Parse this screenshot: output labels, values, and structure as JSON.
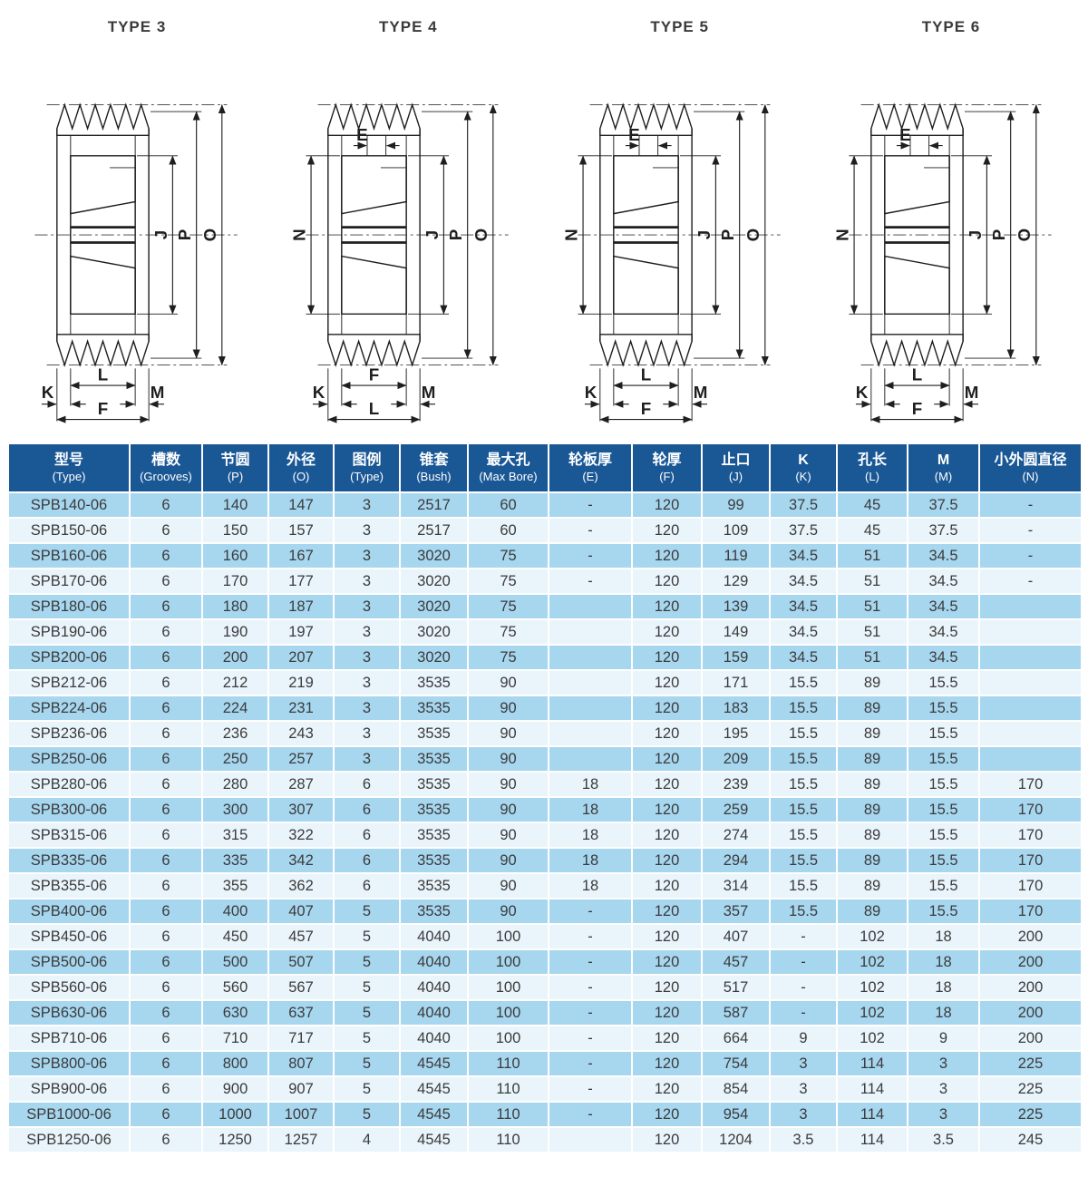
{
  "colors": {
    "header_bg": "#1a5795",
    "row_light": "#a7d6ef",
    "row_pale": "#e9f4fb",
    "header_text": "#ffffff",
    "cell_text": "#3b3b3b",
    "line": "#1f1f1f"
  },
  "drawings": [
    {
      "title": "TYPE 3",
      "right_dims": [
        "J",
        "P",
        "O"
      ],
      "left_dim": "",
      "web_dim": "",
      "k_label": "K",
      "inner_label": "L",
      "m_label": "M",
      "outer_label": "F"
    },
    {
      "title": "TYPE 4",
      "right_dims": [
        "J",
        "P",
        "O"
      ],
      "left_dim": "N",
      "web_dim": "E",
      "k_label": "K",
      "inner_label": "F",
      "m_label": "M",
      "outer_label": "L"
    },
    {
      "title": "TYPE 5",
      "right_dims": [
        "J",
        "P",
        "O"
      ],
      "left_dim": "N",
      "web_dim": "E",
      "k_label": "K",
      "inner_label": "L",
      "m_label": "M",
      "outer_label": "F"
    },
    {
      "title": "TYPE 6",
      "right_dims": [
        "J",
        "P",
        "O"
      ],
      "left_dim": "N",
      "web_dim": "E",
      "k_label": "K",
      "inner_label": "L",
      "m_label": "M",
      "outer_label": "F"
    }
  ],
  "table": {
    "columns": [
      {
        "zh": "型号",
        "en": "(Type)"
      },
      {
        "zh": "槽数",
        "en": "(Grooves)"
      },
      {
        "zh": "节圆",
        "en": "(P)"
      },
      {
        "zh": "外径",
        "en": "(O)"
      },
      {
        "zh": "图例",
        "en": "(Type)"
      },
      {
        "zh": "锥套",
        "en": "(Bush)"
      },
      {
        "zh": "最大孔",
        "en": "(Max Bore)"
      },
      {
        "zh": "轮板厚",
        "en": "(E)"
      },
      {
        "zh": "轮厚",
        "en": "(F)"
      },
      {
        "zh": "止口",
        "en": "(J)"
      },
      {
        "zh": "K",
        "en": "(K)"
      },
      {
        "zh": "孔长",
        "en": "(L)"
      },
      {
        "zh": "M",
        "en": "(M)"
      },
      {
        "zh": "小外圆直径",
        "en": "(N)"
      }
    ],
    "rows": [
      [
        "SPB140-06",
        "6",
        "140",
        "147",
        "3",
        "2517",
        "60",
        "-",
        "120",
        "99",
        "37.5",
        "45",
        "37.5",
        "-"
      ],
      [
        "SPB150-06",
        "6",
        "150",
        "157",
        "3",
        "2517",
        "60",
        "-",
        "120",
        "109",
        "37.5",
        "45",
        "37.5",
        "-"
      ],
      [
        "SPB160-06",
        "6",
        "160",
        "167",
        "3",
        "3020",
        "75",
        "-",
        "120",
        "119",
        "34.5",
        "51",
        "34.5",
        "-"
      ],
      [
        "SPB170-06",
        "6",
        "170",
        "177",
        "3",
        "3020",
        "75",
        "-",
        "120",
        "129",
        "34.5",
        "51",
        "34.5",
        "-"
      ],
      [
        "SPB180-06",
        "6",
        "180",
        "187",
        "3",
        "3020",
        "75",
        "",
        "120",
        "139",
        "34.5",
        "51",
        "34.5",
        ""
      ],
      [
        "SPB190-06",
        "6",
        "190",
        "197",
        "3",
        "3020",
        "75",
        "",
        "120",
        "149",
        "34.5",
        "51",
        "34.5",
        ""
      ],
      [
        "SPB200-06",
        "6",
        "200",
        "207",
        "3",
        "3020",
        "75",
        "",
        "120",
        "159",
        "34.5",
        "51",
        "34.5",
        ""
      ],
      [
        "SPB212-06",
        "6",
        "212",
        "219",
        "3",
        "3535",
        "90",
        "",
        "120",
        "171",
        "15.5",
        "89",
        "15.5",
        ""
      ],
      [
        "SPB224-06",
        "6",
        "224",
        "231",
        "3",
        "3535",
        "90",
        "",
        "120",
        "183",
        "15.5",
        "89",
        "15.5",
        ""
      ],
      [
        "SPB236-06",
        "6",
        "236",
        "243",
        "3",
        "3535",
        "90",
        "",
        "120",
        "195",
        "15.5",
        "89",
        "15.5",
        ""
      ],
      [
        "SPB250-06",
        "6",
        "250",
        "257",
        "3",
        "3535",
        "90",
        "",
        "120",
        "209",
        "15.5",
        "89",
        "15.5",
        ""
      ],
      [
        "SPB280-06",
        "6",
        "280",
        "287",
        "6",
        "3535",
        "90",
        "18",
        "120",
        "239",
        "15.5",
        "89",
        "15.5",
        "170"
      ],
      [
        "SPB300-06",
        "6",
        "300",
        "307",
        "6",
        "3535",
        "90",
        "18",
        "120",
        "259",
        "15.5",
        "89",
        "15.5",
        "170"
      ],
      [
        "SPB315-06",
        "6",
        "315",
        "322",
        "6",
        "3535",
        "90",
        "18",
        "120",
        "274",
        "15.5",
        "89",
        "15.5",
        "170"
      ],
      [
        "SPB335-06",
        "6",
        "335",
        "342",
        "6",
        "3535",
        "90",
        "18",
        "120",
        "294",
        "15.5",
        "89",
        "15.5",
        "170"
      ],
      [
        "SPB355-06",
        "6",
        "355",
        "362",
        "6",
        "3535",
        "90",
        "18",
        "120",
        "314",
        "15.5",
        "89",
        "15.5",
        "170"
      ],
      [
        "SPB400-06",
        "6",
        "400",
        "407",
        "5",
        "3535",
        "90",
        "-",
        "120",
        "357",
        "15.5",
        "89",
        "15.5",
        "170"
      ],
      [
        "SPB450-06",
        "6",
        "450",
        "457",
        "5",
        "4040",
        "100",
        "-",
        "120",
        "407",
        "-",
        "102",
        "18",
        "200"
      ],
      [
        "SPB500-06",
        "6",
        "500",
        "507",
        "5",
        "4040",
        "100",
        "-",
        "120",
        "457",
        "-",
        "102",
        "18",
        "200"
      ],
      [
        "SPB560-06",
        "6",
        "560",
        "567",
        "5",
        "4040",
        "100",
        "-",
        "120",
        "517",
        "-",
        "102",
        "18",
        "200"
      ],
      [
        "SPB630-06",
        "6",
        "630",
        "637",
        "5",
        "4040",
        "100",
        "-",
        "120",
        "587",
        "-",
        "102",
        "18",
        "200"
      ],
      [
        "SPB710-06",
        "6",
        "710",
        "717",
        "5",
        "4040",
        "100",
        "-",
        "120",
        "664",
        "9",
        "102",
        "9",
        "200"
      ],
      [
        "SPB800-06",
        "6",
        "800",
        "807",
        "5",
        "4545",
        "110",
        "-",
        "120",
        "754",
        "3",
        "114",
        "3",
        "225"
      ],
      [
        "SPB900-06",
        "6",
        "900",
        "907",
        "5",
        "4545",
        "110",
        "-",
        "120",
        "854",
        "3",
        "114",
        "3",
        "225"
      ],
      [
        "SPB1000-06",
        "6",
        "1000",
        "1007",
        "5",
        "4545",
        "110",
        "-",
        "120",
        "954",
        "3",
        "114",
        "3",
        "225"
      ],
      [
        "SPB1250-06",
        "6",
        "1250",
        "1257",
        "4",
        "4545",
        "110",
        "",
        "120",
        "1204",
        "3.5",
        "114",
        "3.5",
        "245"
      ]
    ]
  }
}
